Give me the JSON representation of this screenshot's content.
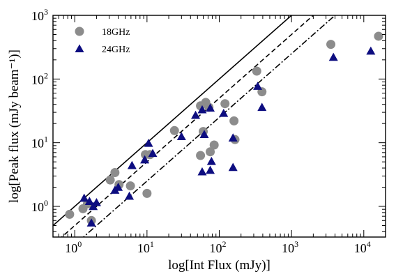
{
  "chart_data": {
    "type": "scatter",
    "title": "",
    "xlabel": "log[Int Flux (mJy)]",
    "ylabel": "log[Peak flux (mJy beam⁻¹)]",
    "xscale": "log",
    "yscale": "log",
    "xlim": [
      0.5,
      20000
    ],
    "ylim": [
      0.33,
      1000
    ],
    "x_ticks": [
      {
        "base": "10",
        "exp": "0"
      },
      {
        "base": "10",
        "exp": "1"
      },
      {
        "base": "10",
        "exp": "2"
      },
      {
        "base": "10",
        "exp": "3"
      },
      {
        "base": "10",
        "exp": "4"
      }
    ],
    "y_ticks": [
      {
        "base": "10",
        "exp": "0"
      },
      {
        "base": "10",
        "exp": "1"
      },
      {
        "base": "10",
        "exp": "2"
      },
      {
        "base": "10",
        "exp": "3"
      }
    ],
    "grid": false,
    "legend_position": "top-left",
    "series": [
      {
        "name": "18GHz",
        "marker": "circle",
        "color": "#8c8c8c",
        "points": [
          [
            0.85,
            0.75
          ],
          [
            1.3,
            0.92
          ],
          [
            1.5,
            1.1
          ],
          [
            1.7,
            0.6
          ],
          [
            3.1,
            2.6
          ],
          [
            3.6,
            3.4
          ],
          [
            4.1,
            2.2
          ],
          [
            5.9,
            2.1
          ],
          [
            9.5,
            6.5
          ],
          [
            10,
            1.6
          ],
          [
            11,
            6.5
          ],
          [
            24,
            15.5
          ],
          [
            55,
            38
          ],
          [
            55,
            6.3
          ],
          [
            60,
            15
          ],
          [
            65,
            43
          ],
          [
            72,
            36
          ],
          [
            75,
            7.2
          ],
          [
            85,
            9.2
          ],
          [
            120,
            41
          ],
          [
            160,
            22
          ],
          [
            165,
            11.2
          ],
          [
            330,
            133
          ],
          [
            390,
            63
          ],
          [
            3500,
            350
          ],
          [
            16000,
            470
          ]
        ]
      },
      {
        "name": "24GHz",
        "marker": "triangle",
        "color": "#0d0d80",
        "points": [
          [
            1.35,
            1.35
          ],
          [
            1.6,
            1.2
          ],
          [
            1.7,
            0.55
          ],
          [
            1.8,
            1.0
          ],
          [
            2.0,
            1.15
          ],
          [
            3.6,
            1.8
          ],
          [
            4.0,
            2.0
          ],
          [
            5.7,
            1.45
          ],
          [
            6.2,
            4.4
          ],
          [
            9.3,
            5.4
          ],
          [
            10.5,
            9.8
          ],
          [
            12,
            6.8
          ],
          [
            30,
            12.5
          ],
          [
            47,
            27
          ],
          [
            58,
            33
          ],
          [
            58,
            3.5
          ],
          [
            62,
            13.5
          ],
          [
            75,
            35
          ],
          [
            75,
            3.7
          ],
          [
            78,
            5.1
          ],
          [
            115,
            29
          ],
          [
            155,
            11.9
          ],
          [
            155,
            4.1
          ],
          [
            340,
            77
          ],
          [
            390,
            36
          ],
          [
            3800,
            220
          ],
          [
            12500,
            275
          ]
        ]
      }
    ],
    "lines": [
      {
        "name": "y = x",
        "style": "solid",
        "slope": 1,
        "intercept_factor": 1.0
      },
      {
        "name": "y = x/2",
        "style": "dashed",
        "slope": 1,
        "intercept_factor": 0.5
      },
      {
        "name": "y = x/4",
        "style": "dashdot",
        "slope": 1,
        "intercept_factor": 0.25
      }
    ]
  }
}
